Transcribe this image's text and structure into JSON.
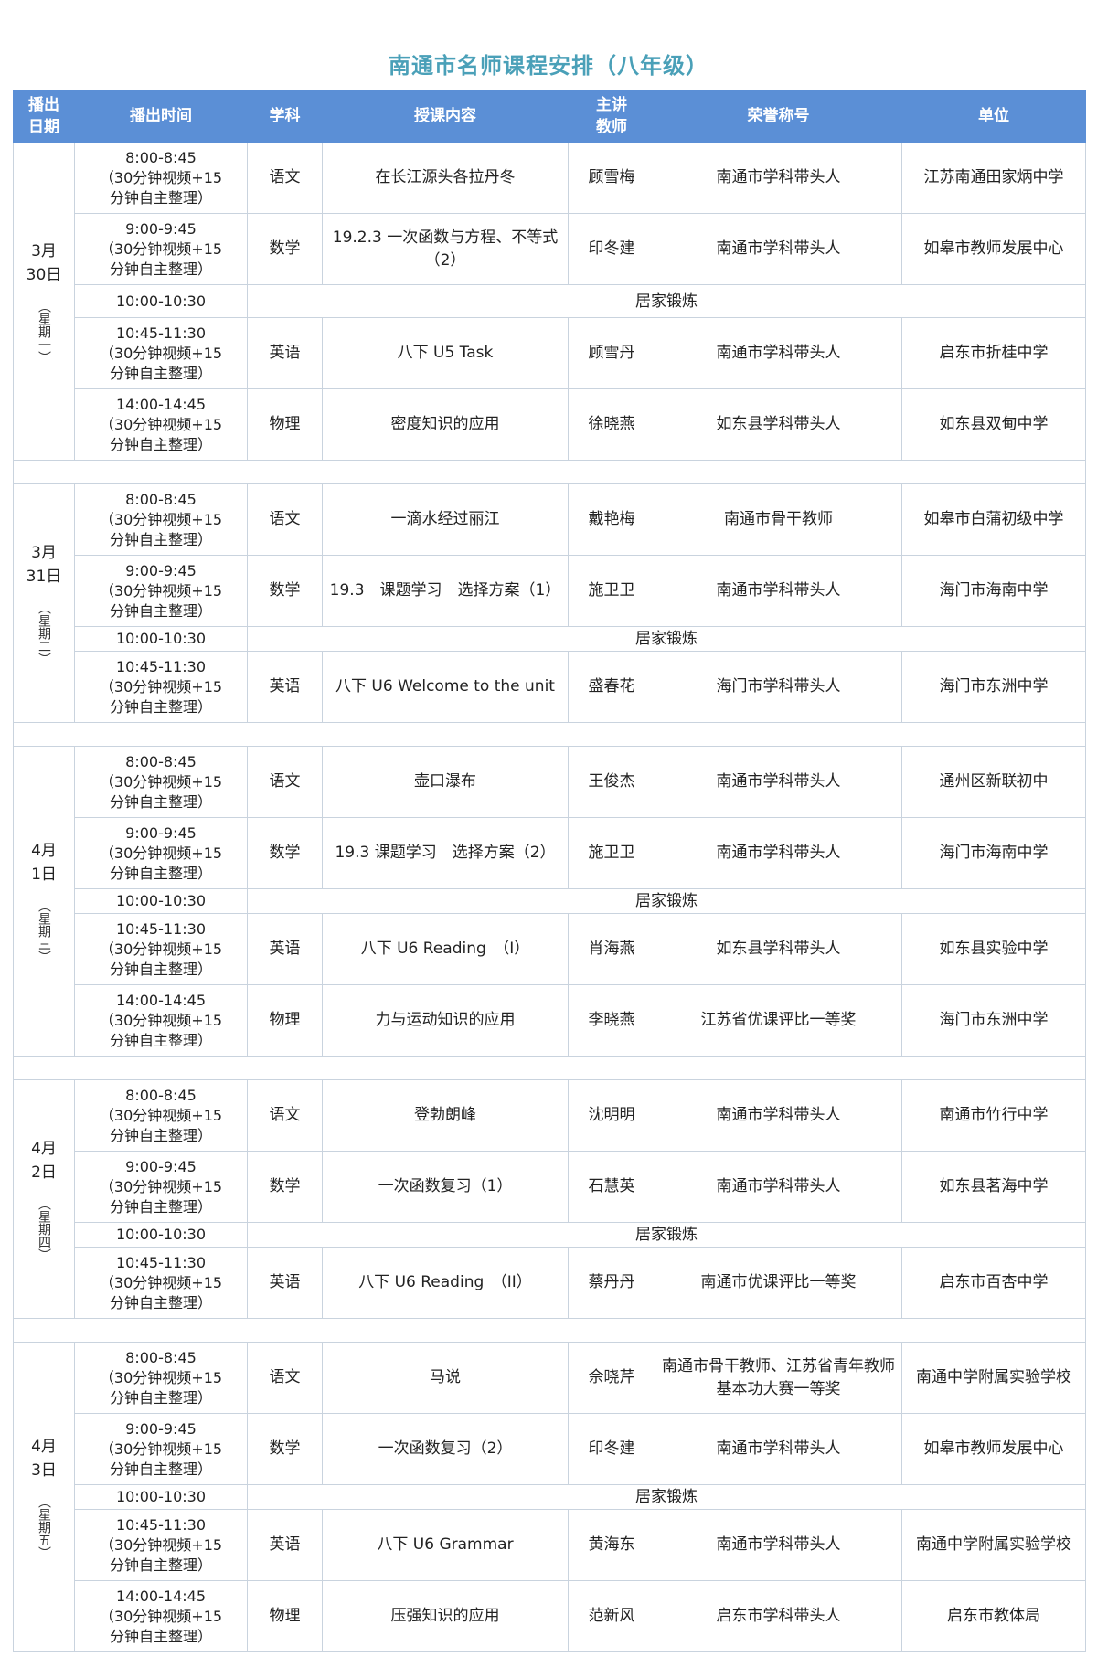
{
  "title": "南通市名师课程安排（八年级）",
  "colors": {
    "header_bg": "#5b8fd6",
    "header_text": "#ffffff",
    "title": "#4aa0b8",
    "grid": "#c9d3de"
  },
  "headers": [
    "播出\n日期",
    "播出时间",
    "学科",
    "授课内容",
    "主讲\n教师",
    "荣誉称号",
    "单位"
  ],
  "days": [
    {
      "date": "3月\n30日",
      "weekday": "（星期一）",
      "rows": [
        {
          "time": "8:00-8:45\n（30分钟视频+15\n分钟自主整理）",
          "subject": "语文",
          "content": "在长江源头各拉丹冬",
          "teacher": "顾雪梅",
          "honor": "南通市学科带头人",
          "unit": "江苏南通田家炳中学"
        },
        {
          "time": "9:00-9:45\n（30分钟视频+15\n分钟自主整理）",
          "subject": "数学",
          "content": "19.2.3 一次函数与方程、不等式（2）",
          "teacher": "印冬建",
          "honor": "南通市学科带头人",
          "unit": "如皋市教师发展中心"
        },
        {
          "time": "10:00-10:30",
          "exercise": "居家锻炼"
        },
        {
          "time": "10:45-11:30\n（30分钟视频+15\n分钟自主整理）",
          "subject": "英语",
          "content": "八下 U5 Task",
          "teacher": "顾雪丹",
          "honor": "南通市学科带头人",
          "unit": "启东市折桂中学"
        },
        {
          "time": "14:00-14:45\n（30分钟视频+15\n分钟自主整理）",
          "subject": "物理",
          "content": "密度知识的应用",
          "teacher": "徐晓燕",
          "honor": "如东县学科带头人",
          "unit": "如东县双甸中学"
        }
      ]
    },
    {
      "date": "3月\n31日",
      "weekday": "（星期二）",
      "rows": [
        {
          "time": "8:00-8:45\n（30分钟视频+15\n分钟自主整理）",
          "subject": "语文",
          "content": "一滴水经过丽江",
          "teacher": "戴艳梅",
          "honor": "南通市骨干教师",
          "unit": "如皋市白蒲初级中学"
        },
        {
          "time": "9:00-9:45\n（30分钟视频+15\n分钟自主整理）",
          "subject": "数学",
          "content": "19.3　课题学习　选择方案（1）",
          "teacher": "施卫卫",
          "honor": "南通市学科带头人",
          "unit": "海门市海南中学"
        },
        {
          "time": "10:00-10:30",
          "exercise": "居家锻炼"
        },
        {
          "time": "10:45-11:30\n（30分钟视频+15\n分钟自主整理）",
          "subject": "英语",
          "content": "八下 U6 Welcome to the unit",
          "teacher": "盛春花",
          "honor": "海门市学科带头人",
          "unit": "海门市东洲中学"
        }
      ]
    },
    {
      "date": "4月\n1日",
      "weekday": "（星期三）",
      "rows": [
        {
          "time": "8:00-8:45\n（30分钟视频+15\n分钟自主整理）",
          "subject": "语文",
          "content": "壶口瀑布",
          "teacher": "王俊杰",
          "honor": "南通市学科带头人",
          "unit": "通州区新联初中"
        },
        {
          "time": "9:00-9:45\n（30分钟视频+15\n分钟自主整理）",
          "subject": "数学",
          "content": "19.3 课题学习　选择方案（2）",
          "teacher": "施卫卫",
          "honor": "南通市学科带头人",
          "unit": "海门市海南中学"
        },
        {
          "time": "10:00-10:30",
          "exercise": "居家锻炼"
        },
        {
          "time": "10:45-11:30\n（30分钟视频+15\n分钟自主整理）",
          "subject": "英语",
          "content": "八下 U6 Reading　（I）",
          "teacher": "肖海燕",
          "honor": "如东县学科带头人",
          "unit": "如东县实验中学"
        },
        {
          "time": "14:00-14:45\n（30分钟视频+15\n分钟自主整理）",
          "subject": "物理",
          "content": "力与运动知识的应用",
          "teacher": "李晓燕",
          "honor": "江苏省优课评比一等奖",
          "unit": "海门市东洲中学"
        }
      ]
    },
    {
      "date": "4月\n2日",
      "weekday": "（星期四）",
      "rows": [
        {
          "time": "8:00-8:45\n（30分钟视频+15\n分钟自主整理）",
          "subject": "语文",
          "content": "登勃朗峰",
          "teacher": "沈明明",
          "honor": "南通市学科带头人",
          "unit": "南通市竹行中学"
        },
        {
          "time": "9:00-9:45\n（30分钟视频+15\n分钟自主整理）",
          "subject": "数学",
          "content": "一次函数复习（1）",
          "teacher": "石慧英",
          "honor": "南通市学科带头人",
          "unit": "如东县茗海中学"
        },
        {
          "time": "10:00-10:30",
          "exercise": "居家锻炼"
        },
        {
          "time": "10:45-11:30\n（30分钟视频+15\n分钟自主整理）",
          "subject": "英语",
          "content": "八下 U6 Reading　（II）",
          "teacher": "蔡丹丹",
          "honor": "南通市优课评比一等奖",
          "unit": "启东市百杏中学"
        }
      ]
    },
    {
      "date": "4月\n3日",
      "weekday": "（星期五）",
      "rows": [
        {
          "time": "8:00-8:45\n（30分钟视频+15\n分钟自主整理）",
          "subject": "语文",
          "content": "马说",
          "teacher": "佘晓芹",
          "honor": "南通市骨干教师、江苏省青年教师基本功大赛一等奖",
          "unit": "南通中学附属实验学校"
        },
        {
          "time": "9:00-9:45\n（30分钟视频+15\n分钟自主整理）",
          "subject": "数学",
          "content": "一次函数复习（2）",
          "teacher": "印冬建",
          "honor": "南通市学科带头人",
          "unit": "如皋市教师发展中心"
        },
        {
          "time": "10:00-10:30",
          "exercise": "居家锻炼"
        },
        {
          "time": "10:45-11:30\n（30分钟视频+15\n分钟自主整理）",
          "subject": "英语",
          "content": "八下 U6 Grammar",
          "teacher": "黄海东",
          "honor": "南通市学科带头人",
          "unit": "南通中学附属实验学校"
        },
        {
          "time": "14:00-14:45\n（30分钟视频+15\n分钟自主整理）",
          "subject": "物理",
          "content": "压强知识的应用",
          "teacher": "范新风",
          "honor": "启东市学科带头人",
          "unit": "启东市教体局"
        }
      ]
    }
  ]
}
